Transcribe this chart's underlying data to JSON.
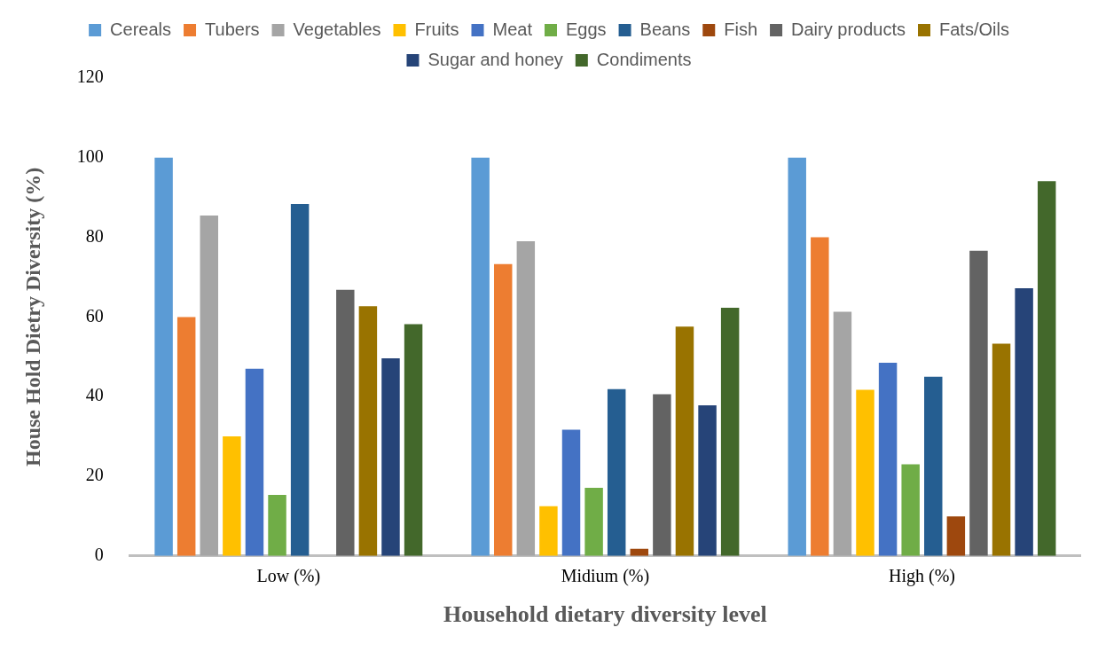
{
  "chart_data": {
    "type": "bar",
    "xlabel": "Household dietary diversity level",
    "ylabel": "House Hold Dietry Diversity (%)",
    "categories": [
      "Low (%)",
      "Midium (%)",
      "High (%)"
    ],
    "series": [
      {
        "name": "Cereals",
        "color": "#5b9bd5",
        "values": [
          100,
          100,
          100
        ]
      },
      {
        "name": "Tubers",
        "color": "#ed7d31",
        "values": [
          60,
          73.3,
          80
        ]
      },
      {
        "name": "Vegetables",
        "color": "#a5a5a5",
        "values": [
          85.5,
          79,
          61.3
        ]
      },
      {
        "name": "Fruits",
        "color": "#ffc000",
        "values": [
          30,
          12.5,
          41.7
        ]
      },
      {
        "name": "Meat",
        "color": "#4472c4",
        "values": [
          47,
          31.7,
          48.5
        ]
      },
      {
        "name": "Eggs",
        "color": "#70ad47",
        "values": [
          15.3,
          17.1,
          23
        ]
      },
      {
        "name": "Beans",
        "color": "#255e91",
        "values": [
          88.4,
          41.9,
          45
        ]
      },
      {
        "name": "Fish",
        "color": "#9e480e",
        "values": [
          0,
          1.8,
          9.9
        ]
      },
      {
        "name": "Dairy products",
        "color": "#636363",
        "values": [
          66.8,
          40.6,
          76.6
        ]
      },
      {
        "name": "Fats/Oils",
        "color": "#997300",
        "values": [
          62.7,
          57.6,
          53.3
        ]
      },
      {
        "name": "Sugar and honey",
        "color": "#264478",
        "values": [
          49.6,
          37.8,
          67.2
        ]
      },
      {
        "name": "Condiments",
        "color": "#43682b",
        "values": [
          58.2,
          62.3,
          94.1
        ]
      }
    ],
    "ylim": [
      0,
      120
    ],
    "yticks": [
      0,
      20,
      40,
      60,
      80,
      100,
      120
    ],
    "grid": false,
    "legend": "top"
  }
}
